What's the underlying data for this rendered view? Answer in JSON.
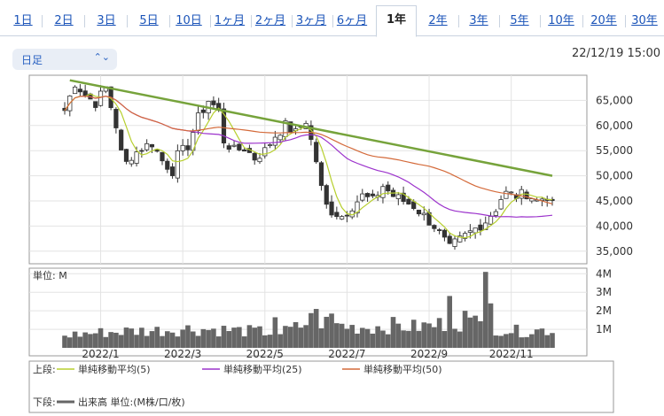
{
  "tabs": [
    {
      "label": "1日"
    },
    {
      "label": "2日"
    },
    {
      "label": "3日"
    },
    {
      "label": "5日"
    },
    {
      "label": "10日"
    },
    {
      "label": "1ヶ月"
    },
    {
      "label": "2ヶ月"
    },
    {
      "label": "3ヶ月"
    },
    {
      "label": "6ヶ月"
    },
    {
      "label": "1年",
      "active": true
    },
    {
      "label": "2年"
    },
    {
      "label": "3年"
    },
    {
      "label": "5年"
    },
    {
      "label": "10年"
    },
    {
      "label": "20年"
    },
    {
      "label": "30年"
    }
  ],
  "period_select": {
    "value": "日足"
  },
  "timestamp": "22/12/19 15:00",
  "chart_data": [
    {
      "type": "line",
      "title": "",
      "x_tick_labels": [
        "2022/1",
        "2022/3",
        "2022/5",
        "2022/7",
        "2022/9",
        "2022/11"
      ],
      "y_tick_labels": [
        "65,000",
        "60,000",
        "55,000",
        "50,000",
        "45,000",
        "40,000",
        "35,000"
      ],
      "ylim": [
        32500,
        70000
      ],
      "grid": true,
      "price_path": [
        [
          0,
          63000
        ],
        [
          2,
          68500
        ],
        [
          4,
          66000
        ],
        [
          6,
          64500
        ],
        [
          8,
          67500
        ],
        [
          10,
          60000
        ],
        [
          11,
          54500
        ],
        [
          12,
          52500
        ],
        [
          13,
          54000
        ],
        [
          15,
          55500
        ],
        [
          17,
          56500
        ],
        [
          19,
          53000
        ],
        [
          21,
          51000
        ],
        [
          22,
          54000
        ],
        [
          24,
          56000
        ],
        [
          26,
          61500
        ],
        [
          28,
          65000
        ],
        [
          30,
          63000
        ],
        [
          31,
          57000
        ],
        [
          33,
          55000
        ],
        [
          35,
          55500
        ],
        [
          37,
          53500
        ],
        [
          39,
          55000
        ],
        [
          41,
          58000
        ],
        [
          43,
          60000
        ],
        [
          45,
          58500
        ],
        [
          47,
          61000
        ],
        [
          48,
          57000
        ],
        [
          49,
          53000
        ],
        [
          50,
          47500
        ],
        [
          51,
          44000
        ],
        [
          52,
          43000
        ],
        [
          54,
          42000
        ],
        [
          56,
          44000
        ],
        [
          58,
          46000
        ],
        [
          60,
          45000
        ],
        [
          62,
          48000
        ],
        [
          64,
          46000
        ],
        [
          66,
          45000
        ],
        [
          68,
          44000
        ],
        [
          70,
          42000
        ],
        [
          72,
          40000
        ],
        [
          74,
          37000
        ],
        [
          75,
          35500
        ],
        [
          76,
          36500
        ],
        [
          78,
          38000
        ],
        [
          80,
          39500
        ],
        [
          82,
          41000
        ],
        [
          84,
          43500
        ],
        [
          85,
          45500
        ],
        [
          86,
          46500
        ],
        [
          88,
          46000
        ],
        [
          90,
          46500
        ],
        [
          92,
          45000
        ],
        [
          94,
          46000
        ],
        [
          95,
          44000
        ]
      ],
      "series": [
        {
          "name": "単純移動平均(5)",
          "color": "#b7cf2e"
        },
        {
          "name": "単純移動平均(25)",
          "color": "#9c33cc"
        },
        {
          "name": "単純移動平均(50)",
          "color": "#d46a3a"
        }
      ],
      "trendline": {
        "color": "#76a33b",
        "from": [
          1,
          69000
        ],
        "to": [
          95,
          50000
        ]
      }
    },
    {
      "type": "bar",
      "title": "",
      "unit_label": "単位: M",
      "y_tick_labels": [
        "4M",
        "3M",
        "2M",
        "1M"
      ],
      "ylim": [
        0,
        4.3
      ],
      "series": [
        {
          "name": "出来高 単位:(M株/口/枚)",
          "color": "#666666"
        }
      ],
      "volume_profile": [
        [
          0,
          0.75
        ],
        [
          6,
          0.9
        ],
        [
          12,
          1.0
        ],
        [
          18,
          1.05
        ],
        [
          24,
          1.15
        ],
        [
          30,
          1.1
        ],
        [
          36,
          1.0
        ],
        [
          42,
          0.9
        ],
        [
          46,
          1.3
        ],
        [
          48,
          1.7
        ],
        [
          52,
          1.45
        ],
        [
          56,
          1.25
        ],
        [
          60,
          1.25
        ],
        [
          64,
          1.35
        ],
        [
          68,
          1.25
        ],
        [
          72,
          1.35
        ],
        [
          76,
          1.6
        ],
        [
          80,
          1.5
        ],
        [
          84,
          1.2
        ],
        [
          88,
          1.0
        ],
        [
          92,
          1.05
        ],
        [
          95,
          1.1
        ]
      ],
      "volume_spikes": [
        [
          82,
          4.1
        ],
        [
          83,
          2.4
        ],
        [
          78,
          2.0
        ],
        [
          75,
          2.8
        ],
        [
          52,
          1.85
        ],
        [
          49,
          2.1
        ],
        [
          41,
          1.65
        ]
      ]
    }
  ],
  "legend": {
    "upper_label": "上段:",
    "lower_label": "下段:",
    "items": [
      {
        "name": "単純移動平均(5)",
        "color": "#b7cf2e"
      },
      {
        "name": "単純移動平均(25)",
        "color": "#9c33cc"
      },
      {
        "name": "単純移動平均(50)",
        "color": "#d46a3a"
      }
    ],
    "volume_item": {
      "name": "出来高 単位:(M株/口/枚)",
      "color": "#666666"
    }
  }
}
